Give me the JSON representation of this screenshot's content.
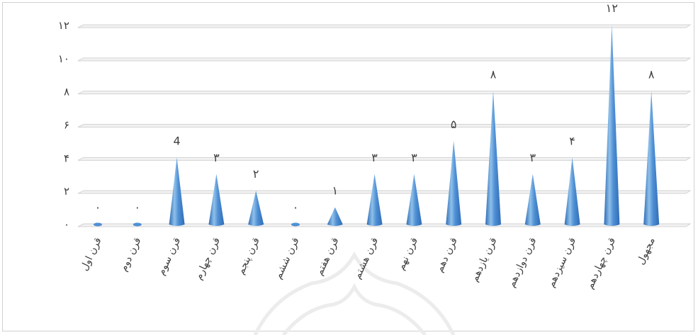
{
  "chart_data": {
    "type": "bar",
    "mark_shape": "cone",
    "categories": [
      "قرن اول",
      "قرن دوم",
      "قرن سوم",
      "قرن چهارم",
      "قرن پنجم",
      "قرن ششم",
      "قرن هفتم",
      "قرن هشتم",
      "قرن نهم",
      "قرن دهم",
      "قرن یازدهم",
      "قرن دوازدهم",
      "قرن سیزدهم",
      "قرن چهاردهم",
      "مجهول"
    ],
    "values": [
      0,
      0,
      4,
      3,
      2,
      0,
      1,
      3,
      3,
      5,
      8,
      3,
      4,
      12,
      8
    ],
    "value_labels": [
      "۰",
      "۰",
      "4",
      "۳",
      "۲",
      "۰",
      "۱",
      "۳",
      "۳",
      "۵",
      "۸",
      "۳",
      "۴",
      "۱۲",
      "۸"
    ],
    "y_ticks": [
      0,
      2,
      4,
      6,
      8,
      10,
      12
    ],
    "y_tick_labels": [
      "۰",
      "۲",
      "۴",
      "۶",
      "۸",
      "۱۰",
      "۱۲"
    ],
    "ylim": [
      0,
      12
    ],
    "grid": true,
    "legend": "none",
    "title": "",
    "xlabel": "",
    "ylabel": "",
    "colors": {
      "bar_light": "#8fc0ea",
      "bar_mid": "#4f8fd4",
      "bar_dark": "#2f6db5",
      "grid": "#d3d3d3",
      "text": "#404040",
      "watermark": "#ececec"
    }
  }
}
